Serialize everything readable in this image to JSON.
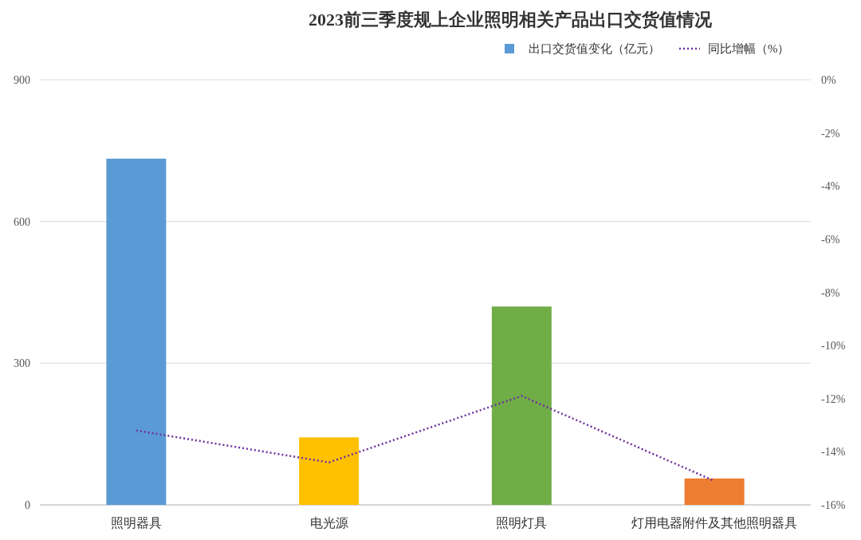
{
  "chart_data": {
    "type": "bar",
    "title": "2023前三季度规上企业照明相关产品出口交货值情况",
    "categories": [
      "照明器具",
      "电光源",
      "照明灯具",
      "灯用电器附件及其他照明器具"
    ],
    "series": [
      {
        "name": "出口交货值变化（亿元）",
        "color": "#5b9bd5",
        "colors": [
          "#5b9bd5",
          "#ffc000",
          "#70ad47",
          "#ed7d31"
        ],
        "values": [
          733,
          143,
          420,
          56
        ]
      },
      {
        "name": "同比增幅（%）",
        "type": "line",
        "axis": "y2",
        "color": "#7030a0",
        "line_style": "dotted",
        "values": [
          -13.2,
          -14.4,
          -11.9,
          -15.1
        ]
      }
    ],
    "ylim": [
      0,
      900
    ],
    "yticks": [
      0,
      300,
      600,
      900
    ],
    "y2lim": [
      -16,
      0
    ],
    "y2ticks": [
      {
        "value": 0,
        "label": "0%"
      },
      {
        "value": -2,
        "label": "-2%"
      },
      {
        "value": -4,
        "label": "-4%"
      },
      {
        "value": -6,
        "label": "-6%"
      },
      {
        "value": -8,
        "label": "-8%"
      },
      {
        "value": -10,
        "label": "-10%"
      },
      {
        "value": -12,
        "label": "-12%"
      },
      {
        "value": -14,
        "label": "-14%"
      },
      {
        "value": -16,
        "label": "-16%"
      }
    ],
    "grid": "y",
    "legend": "top right"
  }
}
